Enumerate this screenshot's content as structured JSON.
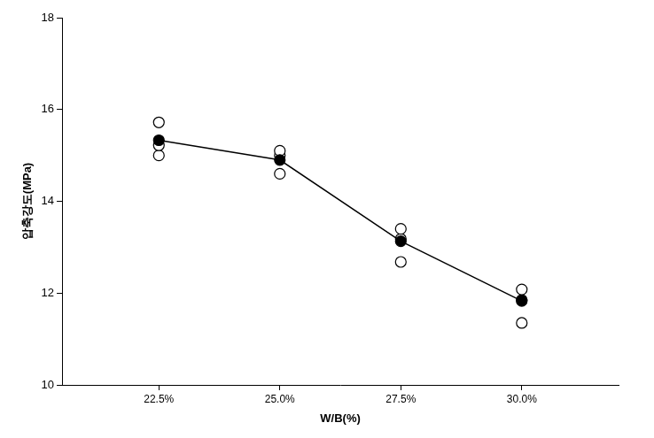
{
  "chart_data": {
    "type": "line",
    "x_label": "W/B(%)",
    "y_label": "압축강도(MPa)",
    "categories": [
      "22.5%",
      "25.0%",
      "27.5%",
      "30.0%"
    ],
    "series": [
      {
        "type": "line",
        "marker": "filled circle",
        "line_style": "solid",
        "color": "#000000",
        "values": [
          15.33,
          14.9,
          13.13,
          11.83
        ]
      },
      {
        "type": "scatter",
        "marker": "open circle",
        "color": "#000000",
        "values": [
          15.72,
          15.1,
          13.4,
          12.08
        ]
      },
      {
        "type": "scatter",
        "marker": "open circle",
        "color": "#000000",
        "values": [
          15.22,
          15.0,
          13.18,
          11.85
        ]
      },
      {
        "type": "scatter",
        "marker": "open circle",
        "color": "#000000",
        "values": [
          15.0,
          14.6,
          12.68,
          11.35
        ]
      }
    ],
    "ylim": [
      10,
      18
    ],
    "yticks": [
      10,
      12,
      14,
      16,
      18
    ],
    "grid": false
  }
}
